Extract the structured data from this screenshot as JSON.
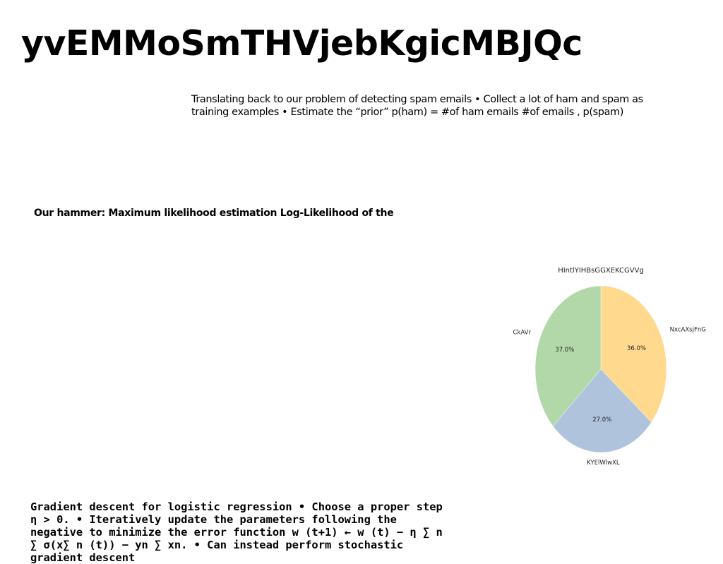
{
  "title": "yvEMMoSmTHVjebKgicMBJQc",
  "paragraph_top": "Translating back to our problem of detecting spam emails • Collect a lot of ham and spam as training examples • Estimate the “prior” p(ham) = #of ham emails #of emails , p(spam)",
  "heading_mid": "Our hammer: Maximum likelihood estimation Log-Likelihood of the",
  "paragraph_bottom": "Gradient descent for logistic regression • Choose a proper step η > 0. • Iteratively update the parameters following the negative to minimize the error function w (t+1) ← w (t) − η ∑ n ∑ σ(x∑ n (t)) − yn ∑ xn. • Can instead perform stochastic gradient descent",
  "chart_data": {
    "type": "pie",
    "title": "HIntlYIHBsGGXEKCGVVg",
    "categories": [
      "NxcAXsjFnG",
      "KYElWlwXL",
      "CkAVr"
    ],
    "values": [
      36.0,
      27.0,
      37.0
    ],
    "labels": [
      "36.0%",
      "27.0%",
      "37.0%"
    ],
    "colors": [
      "#ffd98e",
      "#afc3dc",
      "#b2d8a9"
    ],
    "start_angle_deg": 90,
    "direction": "clockwise"
  }
}
